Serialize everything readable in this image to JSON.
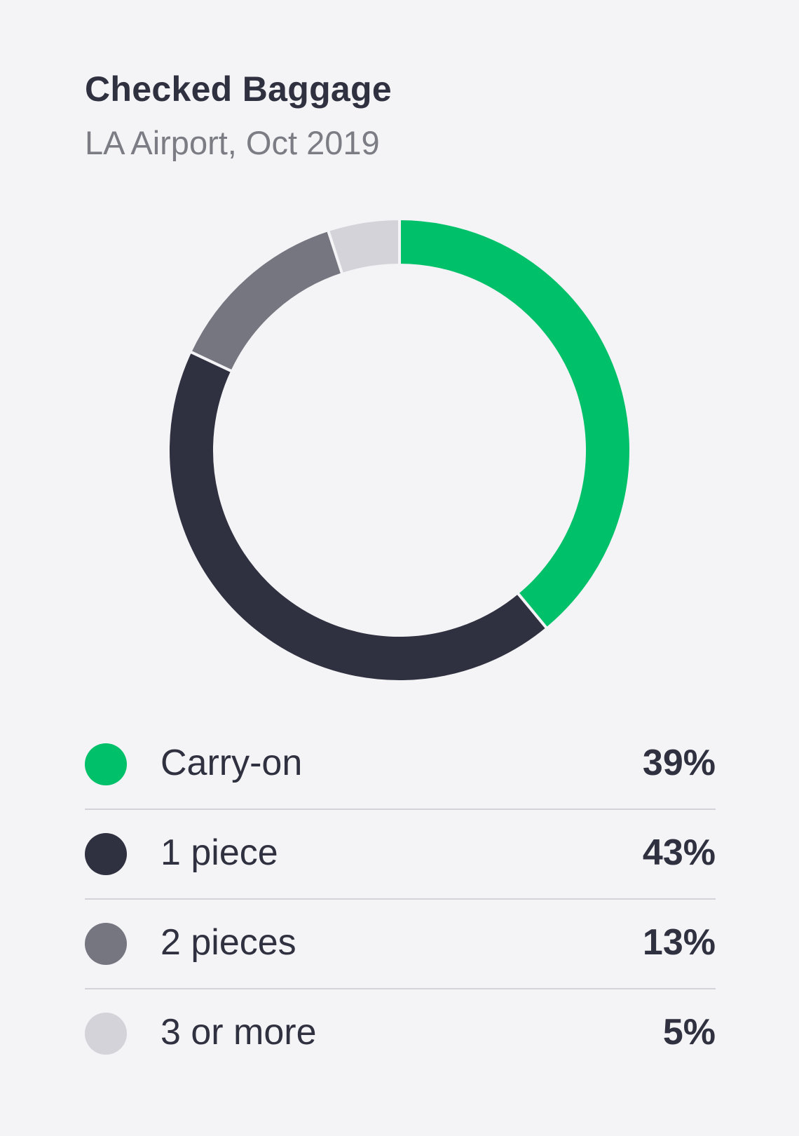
{
  "title": "Checked Baggage",
  "subtitle": "LA Airport, Oct 2019",
  "chart_data": {
    "type": "pie",
    "style": "donut",
    "categories": [
      "Carry-on",
      "1 piece",
      "2 pieces",
      "3 or more"
    ],
    "values": [
      39,
      43,
      13,
      5
    ],
    "value_labels": [
      "39%",
      "43%",
      "13%",
      "5%"
    ],
    "colors": [
      "#00c16a",
      "#2f3140",
      "#757680",
      "#d3d3d9"
    ],
    "legend": "bottom"
  }
}
